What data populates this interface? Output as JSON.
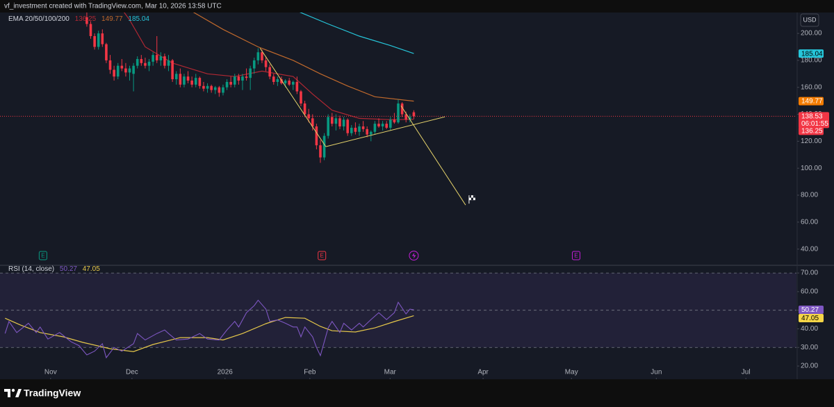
{
  "chart_data": {
    "type": "candlestick",
    "header": "vf_investment created with TradingView.com, Mar 10, 2026 13:58 UTC",
    "title": "EMA 20/50/100/200",
    "currency": "USD",
    "brand": "TradingView",
    "up_color": "#089981",
    "down_color": "#f23645",
    "grid": false,
    "xlim": [
      -22.3,
      182.3
    ],
    "xticks": [
      {
        "value": -9.3,
        "label": "Nov"
      },
      {
        "value": 11.6,
        "label": "Dec"
      },
      {
        "value": 35.5,
        "label": "2026"
      },
      {
        "value": 57.3,
        "label": "Feb"
      },
      {
        "value": 77.9,
        "label": "Mar"
      },
      {
        "value": 101.8,
        "label": "Apr"
      },
      {
        "value": 124.5,
        "label": "May"
      },
      {
        "value": 146.3,
        "label": "Jun"
      },
      {
        "value": 169.3,
        "label": "Jul"
      }
    ],
    "ylim": [
      29,
      215.5
    ],
    "yticks": [
      {
        "value": 40,
        "label": "40.00"
      },
      {
        "value": 60,
        "label": "60.00"
      },
      {
        "value": 80,
        "label": "80.00"
      },
      {
        "value": 100,
        "label": "100.00"
      },
      {
        "value": 120,
        "label": "120.00"
      },
      {
        "value": 140,
        "label": "140.00"
      },
      {
        "value": 160,
        "label": "160.00"
      },
      {
        "value": 180,
        "label": "180.00"
      },
      {
        "value": 200,
        "label": "200.00"
      }
    ],
    "ohlc": [
      [
        212,
        216,
        205,
        207
      ],
      [
        207,
        209,
        196,
        198
      ],
      [
        198,
        200,
        188,
        190
      ],
      [
        190,
        202,
        188,
        200
      ],
      [
        200,
        203,
        190,
        192
      ],
      [
        192,
        193,
        178,
        180
      ],
      [
        180,
        184,
        170,
        173
      ],
      [
        173,
        176,
        165,
        168
      ],
      [
        168,
        178,
        166,
        176
      ],
      [
        176,
        181,
        172,
        174
      ],
      [
        174,
        178,
        168,
        171
      ],
      [
        171,
        176,
        165,
        174
      ],
      [
        170,
        178,
        157,
        176
      ],
      [
        176,
        183,
        174,
        181
      ],
      [
        181,
        184,
        176,
        178
      ],
      [
        178,
        182,
        174,
        176
      ],
      [
        176,
        181,
        172,
        179
      ],
      [
        179,
        186,
        176,
        184
      ],
      [
        184,
        198,
        178,
        180
      ],
      [
        180,
        186,
        176,
        183
      ],
      [
        183,
        185,
        174,
        176
      ],
      [
        176,
        184,
        172,
        180
      ],
      [
        180,
        181,
        164,
        166
      ],
      [
        166,
        172,
        162,
        170
      ],
      [
        170,
        174,
        160,
        162
      ],
      [
        162,
        170,
        160,
        168
      ],
      [
        168,
        172,
        163,
        165
      ],
      [
        165,
        168,
        160,
        162
      ],
      [
        162,
        170,
        160,
        167
      ],
      [
        167,
        168,
        159,
        161
      ],
      [
        161,
        164,
        157,
        159
      ],
      [
        159,
        163,
        156,
        161
      ],
      [
        161,
        162,
        156,
        158
      ],
      [
        158,
        161,
        155,
        160
      ],
      [
        160,
        161,
        153,
        156
      ],
      [
        156,
        162,
        154,
        160
      ],
      [
        160,
        166,
        158,
        164
      ],
      [
        164,
        168,
        160,
        162
      ],
      [
        162,
        170,
        160,
        168
      ],
      [
        168,
        170,
        162,
        165
      ],
      [
        165,
        170,
        158,
        168
      ],
      [
        168,
        174,
        165,
        167
      ],
      [
        167,
        176,
        158,
        174
      ],
      [
        174,
        182,
        170,
        180
      ],
      [
        180,
        189,
        177,
        186
      ],
      [
        186,
        188,
        178,
        180
      ],
      [
        180,
        183,
        172,
        175
      ],
      [
        175,
        177,
        166,
        168
      ],
      [
        168,
        170,
        162,
        164
      ],
      [
        164,
        168,
        161,
        166
      ],
      [
        166,
        168,
        162,
        163
      ],
      [
        163,
        166,
        160,
        165
      ],
      [
        165,
        167,
        161,
        162
      ],
      [
        162,
        165,
        158,
        164
      ],
      [
        164,
        168,
        155,
        157
      ],
      [
        157,
        158,
        146,
        148
      ],
      [
        148,
        150,
        138,
        140
      ],
      [
        140,
        144,
        134,
        137
      ],
      [
        137,
        140,
        128,
        131
      ],
      [
        131,
        133,
        114,
        117
      ],
      [
        117,
        121,
        104,
        108
      ],
      [
        108,
        126,
        106,
        124
      ],
      [
        124,
        140,
        122,
        138
      ],
      [
        138,
        141,
        131,
        133
      ],
      [
        133,
        140,
        128,
        137
      ],
      [
        137,
        139,
        129,
        131
      ],
      [
        131,
        138,
        128,
        136
      ],
      [
        136,
        137,
        124,
        126
      ],
      [
        126,
        132,
        124,
        130
      ],
      [
        130,
        134,
        125,
        127
      ],
      [
        127,
        133,
        124,
        131
      ],
      [
        131,
        135,
        127,
        129
      ],
      [
        129,
        131,
        123,
        125
      ],
      [
        125,
        128,
        120,
        127
      ],
      [
        127,
        135,
        125,
        133
      ],
      [
        133,
        137,
        130,
        131
      ],
      [
        131,
        135,
        128,
        133
      ],
      [
        133,
        135,
        129,
        130
      ],
      [
        130,
        138,
        128,
        136
      ],
      [
        136,
        141,
        133,
        134
      ],
      [
        134,
        151,
        133,
        148
      ],
      [
        148,
        149,
        138,
        140
      ],
      [
        140,
        142,
        134,
        136
      ],
      [
        136,
        140,
        134,
        138
      ],
      [
        141.5,
        143,
        136.5,
        138.53
      ]
    ],
    "countdown": "06:01:55",
    "ema": [
      {
        "color": "#b22833",
        "x": [
          8,
          11,
          15,
          22,
          31,
          38,
          45,
          53,
          58,
          63,
          70,
          78,
          84
        ],
        "values": [
          222,
          210,
          190,
          178,
          170,
          168,
          172,
          168,
          155,
          143,
          137,
          136,
          136.25
        ]
      },
      {
        "color": "#c0692c",
        "x": [
          26,
          35,
          44,
          53,
          60,
          67,
          74,
          84
        ],
        "values": [
          218,
          203,
          190,
          180,
          170,
          161,
          153,
          149.77
        ]
      },
      {
        "color": "#26c6da",
        "x": [
          52,
          62,
          70,
          78,
          84
        ],
        "values": [
          219,
          207,
          198,
          191,
          185.04
        ]
      }
    ],
    "drawings": [
      {
        "color": "#e6d36b",
        "x": [
          44.5,
          61.4
        ],
        "values": [
          189,
          116
        ]
      },
      {
        "color": "#e6d36b",
        "x": [
          61.4,
          92
        ],
        "values": [
          116,
          138.1
        ]
      },
      {
        "color": "#e6d36b",
        "x": [
          80.7,
          97.3
        ],
        "values": [
          146.4,
          72.7
        ]
      }
    ],
    "events": [
      {
        "x": -11.25,
        "label": "E",
        "color": "#089981"
      },
      {
        "x": 60.4,
        "label": "E",
        "color": "#f23645"
      },
      {
        "x": 125.7,
        "label": "E",
        "color": "#c21fd6"
      }
    ],
    "rsi": {
      "title": "RSI (14, close)",
      "ylim": [
        13.3,
        73.4
      ],
      "yticks": [
        {
          "value": 20,
          "label": "20.00"
        },
        {
          "value": 30,
          "label": "30.00"
        },
        {
          "value": 40,
          "label": "40.00"
        },
        {
          "value": 50,
          "label": "50.00"
        },
        {
          "value": 60,
          "label": "60.00"
        },
        {
          "value": 70,
          "label": "70.00"
        }
      ],
      "levels": [
        70,
        50,
        30
      ],
      "line": {
        "color": "#7e57c2",
        "x": [
          -21,
          -20,
          -18,
          -15,
          -13,
          -12,
          -10,
          -7,
          -4,
          -2,
          0,
          2,
          4,
          5,
          7,
          9,
          12,
          13,
          15,
          18,
          20,
          21,
          23,
          26,
          29,
          31,
          34,
          36,
          38,
          39,
          41,
          43,
          44,
          46,
          47,
          49,
          51,
          53,
          54,
          55,
          56,
          58,
          59,
          60,
          62,
          63,
          65,
          66,
          68,
          70,
          71,
          73,
          75,
          77,
          79,
          80,
          82,
          83,
          84
        ],
        "values": [
          37.5,
          44,
          38,
          43,
          38,
          41,
          34.5,
          38,
          33,
          31,
          26,
          28,
          32,
          24.5,
          30,
          28,
          32,
          37.5,
          34,
          37.5,
          39.4,
          37.5,
          34,
          34.5,
          37.5,
          34.5,
          34,
          39.4,
          44,
          41,
          48.7,
          52.5,
          55.4,
          50.6,
          44,
          44.8,
          43,
          41,
          41,
          35.7,
          41,
          35.7,
          30,
          25.6,
          40.5,
          44,
          38,
          43,
          39.4,
          43,
          41,
          45,
          48.7,
          45,
          48.7,
          54.3,
          48,
          50.6,
          50.27
        ]
      },
      "ma": {
        "color": "#e6c84a",
        "x": [
          -21,
          -17,
          -12,
          -6,
          -1,
          6,
          12,
          17,
          24,
          31,
          35,
          40,
          46,
          51,
          56,
          60,
          63,
          69,
          74,
          79,
          84
        ],
        "values": [
          45.7,
          42,
          38,
          35.7,
          32.7,
          29.3,
          27.8,
          31.6,
          35.3,
          35.3,
          34,
          37.5,
          42.8,
          46.1,
          45.7,
          41.3,
          39,
          38.3,
          40.5,
          43.9,
          47.05
        ]
      }
    }
  }
}
